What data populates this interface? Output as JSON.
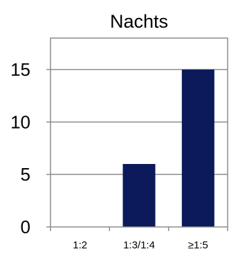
{
  "chart_data": {
    "type": "bar",
    "title": "Nachts",
    "xlabel": "",
    "ylabel": "",
    "categories": [
      "1:2",
      "1:3/1:4",
      "≥1:5"
    ],
    "series": [
      {
        "values": [
          0,
          6,
          15
        ],
        "color": "#0c1a5c"
      }
    ],
    "ylim": [
      0,
      18
    ],
    "yticks": [
      0,
      5,
      10,
      15
    ],
    "grid": "horizontal",
    "gridline_color": "#8c8c8c",
    "axis_color": "#8c8c8c",
    "legend": "none"
  }
}
